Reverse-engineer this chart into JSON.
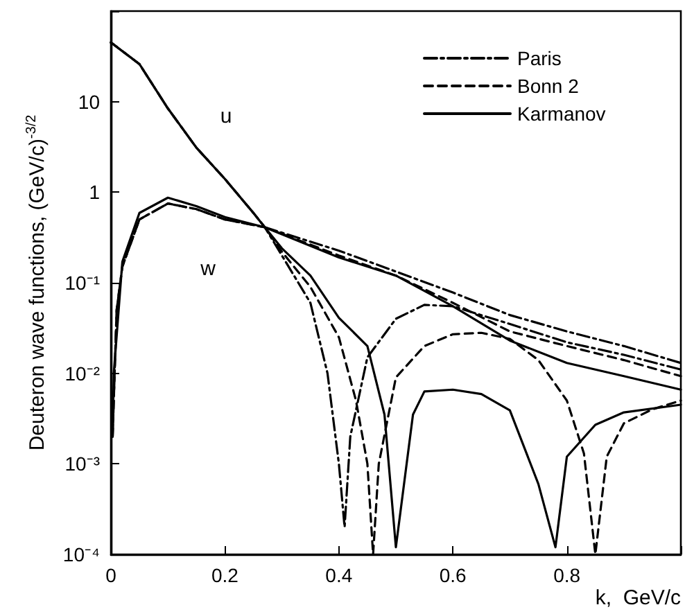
{
  "chart_data": {
    "type": "line",
    "xlabel": "k,  GeV/c",
    "ylabel": "Deuteron wave functions, (GeV/c)$^{-3/2}$",
    "xlim": [
      0,
      1
    ],
    "xticks": [
      0,
      0.2,
      0.4,
      0.6,
      0.8,
      {
        "value": 1,
        "label": null
      }
    ],
    "ylim": [
      0.0001,
      100
    ],
    "log": "y",
    "yticks": [
      {
        "value": 0.0001,
        "label": "10⁻⁴"
      },
      {
        "value": 0.001,
        "label": "10⁻³"
      },
      {
        "value": 0.01,
        "label": "10⁻²"
      },
      {
        "value": 0.1,
        "label": "10⁻¹"
      },
      1,
      10,
      {
        "value": 100,
        "label": null
      }
    ],
    "legend": "top right",
    "grid": false,
    "marker": "none",
    "annotations": [
      "u",
      "w"
    ],
    "series": [
      {
        "name": "Paris",
        "color": "#000000",
        "line_style": "dashdot",
        "x": [
          0,
          0.05,
          0.1,
          0.15,
          0.2,
          0.25,
          0.27,
          0.3,
          0.35,
          0.38,
          0.4,
          0.41,
          0.42,
          0.45,
          0.5,
          0.55,
          0.6,
          0.7,
          0.8,
          0.9,
          1
        ],
        "values": [
          45,
          26,
          8.4,
          3.1,
          1.4,
          0.59,
          0.41,
          0.2,
          0.06,
          0.01,
          0.001,
          0.0002,
          0.002,
          0.015,
          0.04,
          0.057,
          0.055,
          0.035,
          0.022,
          0.016,
          0.011
        ]
      },
      {
        "color": "#000000",
        "line_style": "dashdot",
        "x": [
          0.003,
          0.01,
          0.02,
          0.05,
          0.1,
          0.15,
          0.2,
          0.27,
          0.4,
          0.5,
          0.6,
          0.7,
          0.8,
          0.9,
          1
        ],
        "values": [
          0.002,
          0.05,
          0.15,
          0.5,
          0.75,
          0.65,
          0.5,
          0.41,
          0.226,
          0.133,
          0.078,
          0.044,
          0.029,
          0.02,
          0.013
        ]
      },
      {
        "name": "Bonn 2",
        "color": "#000000",
        "line_style": "dashed",
        "x": [
          0,
          0.05,
          0.1,
          0.15,
          0.2,
          0.25,
          0.27,
          0.3,
          0.35,
          0.4,
          0.43,
          0.45,
          0.46,
          0.47,
          0.5,
          0.55,
          0.6,
          0.65,
          0.7,
          0.75,
          0.8,
          0.83,
          0.85,
          0.87,
          0.9,
          0.95,
          1
        ],
        "values": [
          45,
          26,
          8.4,
          3.1,
          1.4,
          0.59,
          0.41,
          0.22,
          0.09,
          0.025,
          0.005,
          0.001,
          0.0001,
          0.001,
          0.009,
          0.02,
          0.027,
          0.028,
          0.024,
          0.014,
          0.005,
          0.0013,
          0.0001,
          0.0012,
          0.0028,
          0.004,
          0.005
        ]
      },
      {
        "color": "#000000",
        "line_style": "dashed",
        "x": [
          0.003,
          0.01,
          0.02,
          0.05,
          0.1,
          0.15,
          0.2,
          0.27,
          0.4,
          0.5,
          0.6,
          0.7,
          0.8,
          0.9,
          1
        ],
        "values": [
          0.002,
          0.05,
          0.15,
          0.5,
          0.75,
          0.65,
          0.5,
          0.41,
          0.2,
          0.12,
          0.06,
          0.029,
          0.02,
          0.014,
          0.0093
        ]
      },
      {
        "name": "Karmanov",
        "color": "#000000",
        "line_style": "solid",
        "x": [
          0,
          0.05,
          0.1,
          0.15,
          0.2,
          0.25,
          0.27,
          0.3,
          0.35,
          0.4,
          0.45,
          0.48,
          0.5,
          0.53,
          0.55,
          0.6,
          0.65,
          0.7,
          0.75,
          0.78,
          0.8,
          0.85,
          0.9,
          1
        ],
        "values": [
          45,
          26,
          8.4,
          3.1,
          1.4,
          0.59,
          0.41,
          0.24,
          0.12,
          0.041,
          0.02,
          0.0035,
          0.00012,
          0.0035,
          0.0063,
          0.0066,
          0.0059,
          0.0039,
          0.0006,
          0.00012,
          0.0012,
          0.0027,
          0.0037,
          0.0045
        ]
      },
      {
        "color": "#000000",
        "line_style": "solid",
        "x": [
          0.003,
          0.005,
          0.02,
          0.05,
          0.1,
          0.15,
          0.2,
          0.27,
          0.4,
          0.5,
          0.6,
          0.7,
          0.8,
          0.9,
          1
        ],
        "values": [
          0.002,
          0.01,
          0.17,
          0.59,
          0.87,
          0.7,
          0.53,
          0.41,
          0.19,
          0.12,
          0.055,
          0.023,
          0.013,
          0.0093,
          0.0066
        ]
      }
    ]
  }
}
